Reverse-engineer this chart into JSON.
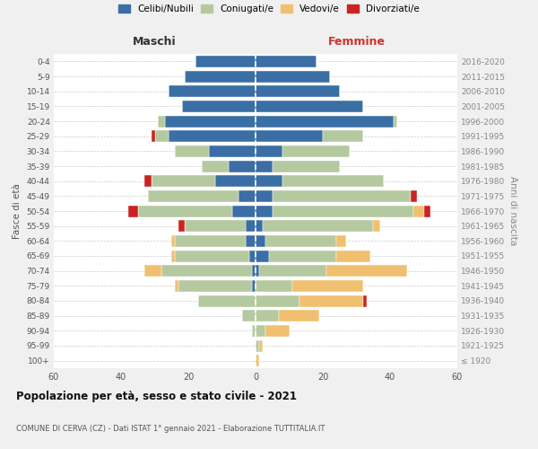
{
  "age_groups": [
    "100+",
    "95-99",
    "90-94",
    "85-89",
    "80-84",
    "75-79",
    "70-74",
    "65-69",
    "60-64",
    "55-59",
    "50-54",
    "45-49",
    "40-44",
    "35-39",
    "30-34",
    "25-29",
    "20-24",
    "15-19",
    "10-14",
    "5-9",
    "0-4"
  ],
  "birth_years": [
    "≤ 1920",
    "1921-1925",
    "1926-1930",
    "1931-1935",
    "1936-1940",
    "1941-1945",
    "1946-1950",
    "1951-1955",
    "1956-1960",
    "1961-1965",
    "1966-1970",
    "1971-1975",
    "1976-1980",
    "1981-1985",
    "1986-1990",
    "1991-1995",
    "1996-2000",
    "2001-2005",
    "2006-2010",
    "2011-2015",
    "2016-2020"
  ],
  "colors": {
    "celibi": "#3a6ea5",
    "coniugati": "#b5c9a0",
    "vedovi": "#f0c070",
    "divorziati": "#cc2222"
  },
  "maschi": {
    "celibi": [
      0,
      0,
      0,
      0,
      0,
      1,
      1,
      2,
      3,
      3,
      7,
      5,
      12,
      8,
      14,
      26,
      27,
      22,
      26,
      21,
      18
    ],
    "coniugati": [
      0,
      0,
      1,
      4,
      17,
      22,
      27,
      22,
      21,
      18,
      28,
      27,
      19,
      8,
      10,
      4,
      2,
      0,
      0,
      0,
      0
    ],
    "vedovi": [
      0,
      0,
      0,
      0,
      0,
      1,
      5,
      1,
      1,
      0,
      0,
      0,
      0,
      0,
      0,
      0,
      0,
      0,
      0,
      0,
      0
    ],
    "divorziati": [
      0,
      0,
      0,
      0,
      0,
      0,
      0,
      0,
      0,
      2,
      3,
      0,
      2,
      0,
      0,
      1,
      0,
      0,
      0,
      0,
      0
    ]
  },
  "femmine": {
    "celibi": [
      0,
      0,
      0,
      0,
      0,
      0,
      1,
      4,
      3,
      2,
      5,
      5,
      8,
      5,
      8,
      20,
      41,
      32,
      25,
      22,
      18
    ],
    "coniugati": [
      0,
      1,
      3,
      7,
      13,
      11,
      20,
      20,
      21,
      33,
      42,
      41,
      30,
      20,
      20,
      12,
      1,
      0,
      0,
      0,
      0
    ],
    "vedovi": [
      1,
      1,
      7,
      12,
      19,
      21,
      24,
      10,
      3,
      2,
      3,
      0,
      0,
      0,
      0,
      0,
      0,
      0,
      0,
      0,
      0
    ],
    "divorziati": [
      0,
      0,
      0,
      0,
      1,
      0,
      0,
      0,
      0,
      0,
      2,
      2,
      0,
      0,
      0,
      0,
      0,
      0,
      0,
      0,
      0
    ]
  },
  "title": "Popolazione per età, sesso e stato civile - 2021",
  "subtitle": "COMUNE DI CERVA (CZ) - Dati ISTAT 1° gennaio 2021 - Elaborazione TUTTITALIA.IT",
  "xlabel_left": "Maschi",
  "xlabel_right": "Femmine",
  "ylabel_left": "Fasce di età",
  "ylabel_right": "Anni di nascita",
  "xlim": 60,
  "legend_labels": [
    "Celibi/Nubili",
    "Coniugati/e",
    "Vedovi/e",
    "Divorziati/e"
  ],
  "background_color": "#f0f0f0",
  "plot_background": "#ffffff"
}
